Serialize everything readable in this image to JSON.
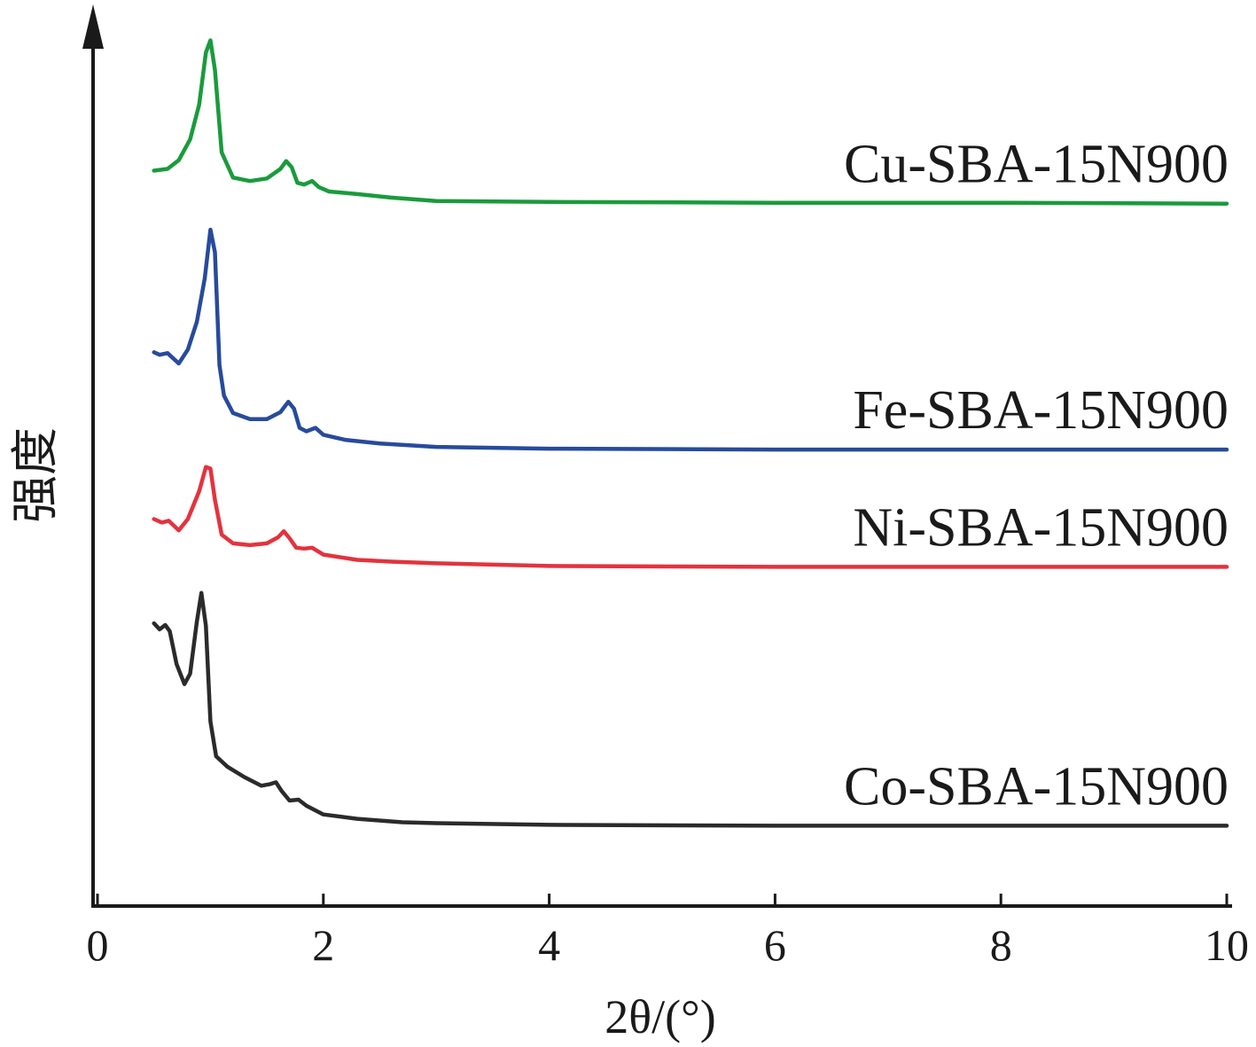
{
  "chart_data": {
    "type": "line",
    "xlabel": "2θ/(°)",
    "ylabel": "强度",
    "xlim": [
      0,
      10
    ],
    "ylim": [
      0,
      1
    ],
    "grid": false,
    "x_ticks": [
      "0",
      "2",
      "4",
      "6",
      "8",
      "10"
    ],
    "y_ticks": [],
    "series": [
      {
        "name": "Cu-SBA-15N900",
        "color": "#1a9b3c",
        "points": [
          [
            0.5,
            0.824
          ],
          [
            0.62,
            0.826
          ],
          [
            0.72,
            0.836
          ],
          [
            0.82,
            0.86
          ],
          [
            0.9,
            0.9
          ],
          [
            0.96,
            0.96
          ],
          [
            1.0,
            0.974
          ],
          [
            1.04,
            0.94
          ],
          [
            1.1,
            0.845
          ],
          [
            1.2,
            0.816
          ],
          [
            1.35,
            0.812
          ],
          [
            1.5,
            0.815
          ],
          [
            1.62,
            0.826
          ],
          [
            1.67,
            0.835
          ],
          [
            1.72,
            0.828
          ],
          [
            1.77,
            0.81
          ],
          [
            1.83,
            0.808
          ],
          [
            1.9,
            0.812
          ],
          [
            1.96,
            0.805
          ],
          [
            2.05,
            0.8
          ],
          [
            2.3,
            0.797
          ],
          [
            2.6,
            0.793
          ],
          [
            3.0,
            0.789
          ],
          [
            4.0,
            0.788
          ],
          [
            6.0,
            0.787
          ],
          [
            8.0,
            0.787
          ],
          [
            10.0,
            0.786
          ]
        ]
      },
      {
        "name": "Fe-SBA-15N900",
        "color": "#274b9c",
        "points": [
          [
            0.5,
            0.615
          ],
          [
            0.55,
            0.612
          ],
          [
            0.62,
            0.614
          ],
          [
            0.72,
            0.602
          ],
          [
            0.8,
            0.618
          ],
          [
            0.88,
            0.65
          ],
          [
            0.95,
            0.7
          ],
          [
            1.0,
            0.756
          ],
          [
            1.04,
            0.73
          ],
          [
            1.08,
            0.6
          ],
          [
            1.12,
            0.565
          ],
          [
            1.2,
            0.545
          ],
          [
            1.35,
            0.538
          ],
          [
            1.5,
            0.538
          ],
          [
            1.62,
            0.546
          ],
          [
            1.69,
            0.558
          ],
          [
            1.74,
            0.55
          ],
          [
            1.79,
            0.528
          ],
          [
            1.85,
            0.524
          ],
          [
            1.93,
            0.528
          ],
          [
            2.0,
            0.52
          ],
          [
            2.2,
            0.514
          ],
          [
            2.5,
            0.51
          ],
          [
            3.0,
            0.506
          ],
          [
            4.0,
            0.504
          ],
          [
            6.0,
            0.503
          ],
          [
            8.0,
            0.503
          ],
          [
            10.0,
            0.503
          ]
        ]
      },
      {
        "name": "Ni-SBA-15N900",
        "color": "#e3333e",
        "points": [
          [
            0.5,
            0.423
          ],
          [
            0.57,
            0.419
          ],
          [
            0.63,
            0.421
          ],
          [
            0.72,
            0.41
          ],
          [
            0.8,
            0.423
          ],
          [
            0.9,
            0.455
          ],
          [
            0.96,
            0.483
          ],
          [
            1.0,
            0.481
          ],
          [
            1.04,
            0.445
          ],
          [
            1.1,
            0.405
          ],
          [
            1.2,
            0.395
          ],
          [
            1.35,
            0.393
          ],
          [
            1.5,
            0.395
          ],
          [
            1.6,
            0.402
          ],
          [
            1.65,
            0.409
          ],
          [
            1.7,
            0.401
          ],
          [
            1.76,
            0.39
          ],
          [
            1.83,
            0.389
          ],
          [
            1.9,
            0.39
          ],
          [
            2.0,
            0.382
          ],
          [
            2.3,
            0.376
          ],
          [
            2.6,
            0.374
          ],
          [
            3.0,
            0.372
          ],
          [
            4.0,
            0.369
          ],
          [
            6.0,
            0.368
          ],
          [
            8.0,
            0.368
          ],
          [
            10.0,
            0.368
          ]
        ]
      },
      {
        "name": "Co-SBA-15N900",
        "color": "#2b2b2b",
        "points": [
          [
            0.5,
            0.303
          ],
          [
            0.55,
            0.296
          ],
          [
            0.6,
            0.301
          ],
          [
            0.64,
            0.294
          ],
          [
            0.7,
            0.256
          ],
          [
            0.77,
            0.233
          ],
          [
            0.82,
            0.245
          ],
          [
            0.88,
            0.305
          ],
          [
            0.92,
            0.338
          ],
          [
            0.96,
            0.3
          ],
          [
            1.0,
            0.19
          ],
          [
            1.05,
            0.15
          ],
          [
            1.15,
            0.138
          ],
          [
            1.3,
            0.126
          ],
          [
            1.45,
            0.116
          ],
          [
            1.53,
            0.118
          ],
          [
            1.58,
            0.12
          ],
          [
            1.63,
            0.11
          ],
          [
            1.7,
            0.099
          ],
          [
            1.78,
            0.1
          ],
          [
            1.85,
            0.093
          ],
          [
            2.0,
            0.083
          ],
          [
            2.3,
            0.078
          ],
          [
            2.7,
            0.074
          ],
          [
            3.0,
            0.073
          ],
          [
            4.0,
            0.071
          ],
          [
            6.0,
            0.07
          ],
          [
            8.0,
            0.07
          ],
          [
            10.0,
            0.07
          ]
        ]
      }
    ]
  }
}
